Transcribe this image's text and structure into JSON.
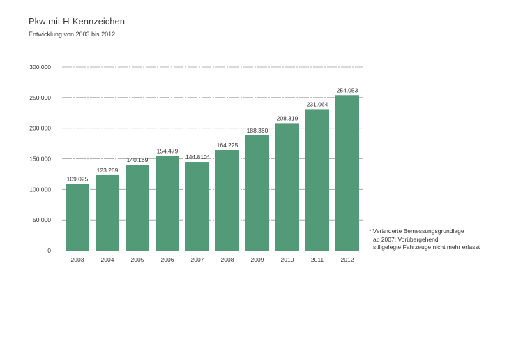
{
  "chart_data": {
    "type": "bar",
    "title": "Pkw mit H-Kennzeichen",
    "subtitle": "Entwicklung von 2003 bis 2012",
    "xlabel": "",
    "ylabel": "",
    "categories": [
      "2003",
      "2004",
      "2005",
      "2006",
      "2007",
      "2008",
      "2009",
      "2010",
      "2011",
      "2012"
    ],
    "values": [
      109025,
      123269,
      140169,
      154479,
      144810,
      164225,
      188360,
      208319,
      231064,
      254053
    ],
    "data_labels": [
      "109.025",
      "123.269",
      "140.169",
      "154.479",
      "144.810*",
      "164.225",
      "188.360",
      "208.319",
      "231.064",
      "254.053"
    ],
    "ylim": [
      0,
      300000
    ],
    "yticks": [
      0,
      50000,
      100000,
      150000,
      200000,
      250000,
      300000
    ],
    "ytick_labels": [
      "0",
      "50.000",
      "100.000",
      "150.000",
      "200.000",
      "250.000",
      "300.000"
    ],
    "grid": true,
    "bar_color": "#529a78"
  },
  "footnote": {
    "line1": "* Veränderte Bemessungsgrundlage",
    "line2": "ab 2007: Vorübergehend",
    "line3": "stillgelegte Fahrzeuge nicht mehr erfasst"
  }
}
